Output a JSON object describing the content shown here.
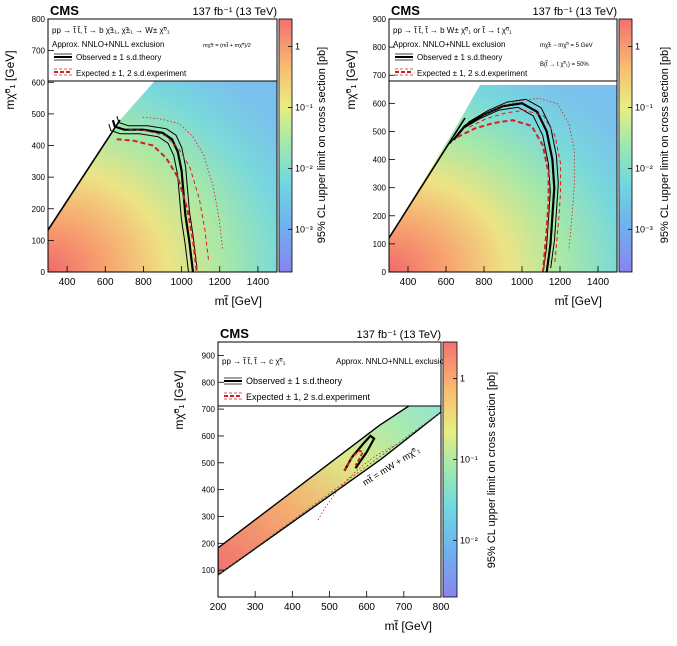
{
  "chart_data": [
    {
      "type": "heatmap",
      "experiment": "CMS",
      "luminosity": "137 fb⁻¹ (13 TeV)",
      "process": "pp → t̃ t̃, t̃ → b χ̃±₁, χ̃±₁ → W± χ̃⁰₁",
      "exclusion_label": "Approx. NNLO+NNLL exclusion",
      "mass_condition": "mχ̃± = (mt̃ + mχ̃⁰)/2",
      "legend": [
        "Observed ± 1 s.d.theory",
        "Expected ± 1, 2 s.d.experiment"
      ],
      "xlabel": "mt̃ [GeV]",
      "ylabel": "mχ̃⁰₁ [GeV]",
      "zlabel": "95% CL upper limit on cross section [pb]",
      "xlim": [
        300,
        1500
      ],
      "ylim": [
        0,
        800
      ],
      "x_ticks": [
        "400",
        "600",
        "800",
        "1000",
        "1200",
        "1400"
      ],
      "y_ticks": [
        "0",
        "100",
        "200",
        "300",
        "400",
        "500",
        "600",
        "700",
        "800"
      ],
      "z_ticks": [
        "1",
        "10⁻¹",
        "10⁻²",
        "10⁻³"
      ],
      "observed": [
        [
          640,
          480
        ],
        [
          650,
          460
        ],
        [
          700,
          450
        ],
        [
          800,
          450
        ],
        [
          900,
          440
        ],
        [
          950,
          420
        ],
        [
          980,
          380
        ],
        [
          1000,
          320
        ],
        [
          1010,
          250
        ],
        [
          1020,
          180
        ],
        [
          1040,
          100
        ],
        [
          1060,
          0
        ]
      ],
      "expected": [
        [
          660,
          420
        ],
        [
          750,
          415
        ],
        [
          850,
          400
        ],
        [
          920,
          360
        ],
        [
          980,
          300
        ],
        [
          1030,
          200
        ],
        [
          1060,
          100
        ],
        [
          1080,
          0
        ]
      ]
    },
    {
      "type": "heatmap",
      "experiment": "CMS",
      "luminosity": "137 fb⁻¹ (13 TeV)",
      "process": "pp → t̃ t̃, t̃ → b W± χ̃⁰₁ or t̃ → t χ̃⁰₁",
      "exclusion_label": "Approx. NNLO+NNLL exclusion",
      "mass_condition": "mχ̃± − mχ̃⁰ = 5 GeV",
      "branching": "B(t̃ → t χ̃⁰₁) = 50%",
      "legend": [
        "Observed ± 1 s.d.theory",
        "Expected ± 1, 2 s.d.experiment"
      ],
      "xlabel": "mt̃ [GeV]",
      "ylabel": "mχ̃⁰₁ [GeV]",
      "zlabel": "95% CL upper limit on cross section [pb]",
      "xlim": [
        300,
        1500
      ],
      "ylim": [
        0,
        900
      ],
      "x_ticks": [
        "400",
        "600",
        "800",
        "1000",
        "1200",
        "1400"
      ],
      "y_ticks": [
        "0",
        "100",
        "200",
        "300",
        "400",
        "500",
        "600",
        "700",
        "800",
        "900"
      ],
      "z_ticks": [
        "1",
        "10⁻¹",
        "10⁻²",
        "10⁻³"
      ],
      "observed": [
        [
          640,
          470
        ],
        [
          700,
          520
        ],
        [
          800,
          560
        ],
        [
          900,
          590
        ],
        [
          1000,
          600
        ],
        [
          1080,
          570
        ],
        [
          1130,
          500
        ],
        [
          1160,
          400
        ],
        [
          1170,
          300
        ],
        [
          1160,
          200
        ],
        [
          1150,
          100
        ],
        [
          1130,
          0
        ]
      ],
      "expected": [
        [
          660,
          480
        ],
        [
          750,
          510
        ],
        [
          850,
          530
        ],
        [
          950,
          540
        ],
        [
          1050,
          520
        ],
        [
          1110,
          450
        ],
        [
          1140,
          350
        ],
        [
          1140,
          250
        ],
        [
          1130,
          150
        ],
        [
          1110,
          0
        ]
      ]
    },
    {
      "type": "heatmap",
      "experiment": "CMS",
      "luminosity": "137 fb⁻¹ (13 TeV)",
      "process": "pp → t̃ t̃, t̃ → c χ̃⁰₁",
      "exclusion_label": "Approx. NNLO+NNLL exclusion",
      "legend": [
        "Observed ± 1 s.d.theory",
        "Expected ± 1, 2 s.d.experiment"
      ],
      "annotation": "mt̃ = mW + mχ̃⁰₁",
      "xlabel": "mt̃ [GeV]",
      "ylabel": "mχ̃⁰₁ [GeV]",
      "zlabel": "95% CL upper limit on cross section [pb]",
      "xlim": [
        200,
        800
      ],
      "ylim": [
        0,
        950
      ],
      "x_ticks": [
        "200",
        "300",
        "400",
        "500",
        "600",
        "700",
        "800"
      ],
      "y_ticks": [
        "100",
        "200",
        "300",
        "400",
        "500",
        "600",
        "700",
        "800",
        "900"
      ],
      "z_ticks": [
        "1",
        "10⁻¹",
        "10⁻²"
      ],
      "observed": [
        [
          540,
          470
        ],
        [
          560,
          520
        ],
        [
          590,
          570
        ],
        [
          610,
          600
        ],
        [
          620,
          590
        ],
        [
          600,
          540
        ],
        [
          570,
          480
        ]
      ],
      "expected": [
        [
          540,
          470
        ],
        [
          560,
          520
        ],
        [
          580,
          545
        ],
        [
          590,
          540
        ],
        [
          570,
          490
        ]
      ]
    }
  ]
}
